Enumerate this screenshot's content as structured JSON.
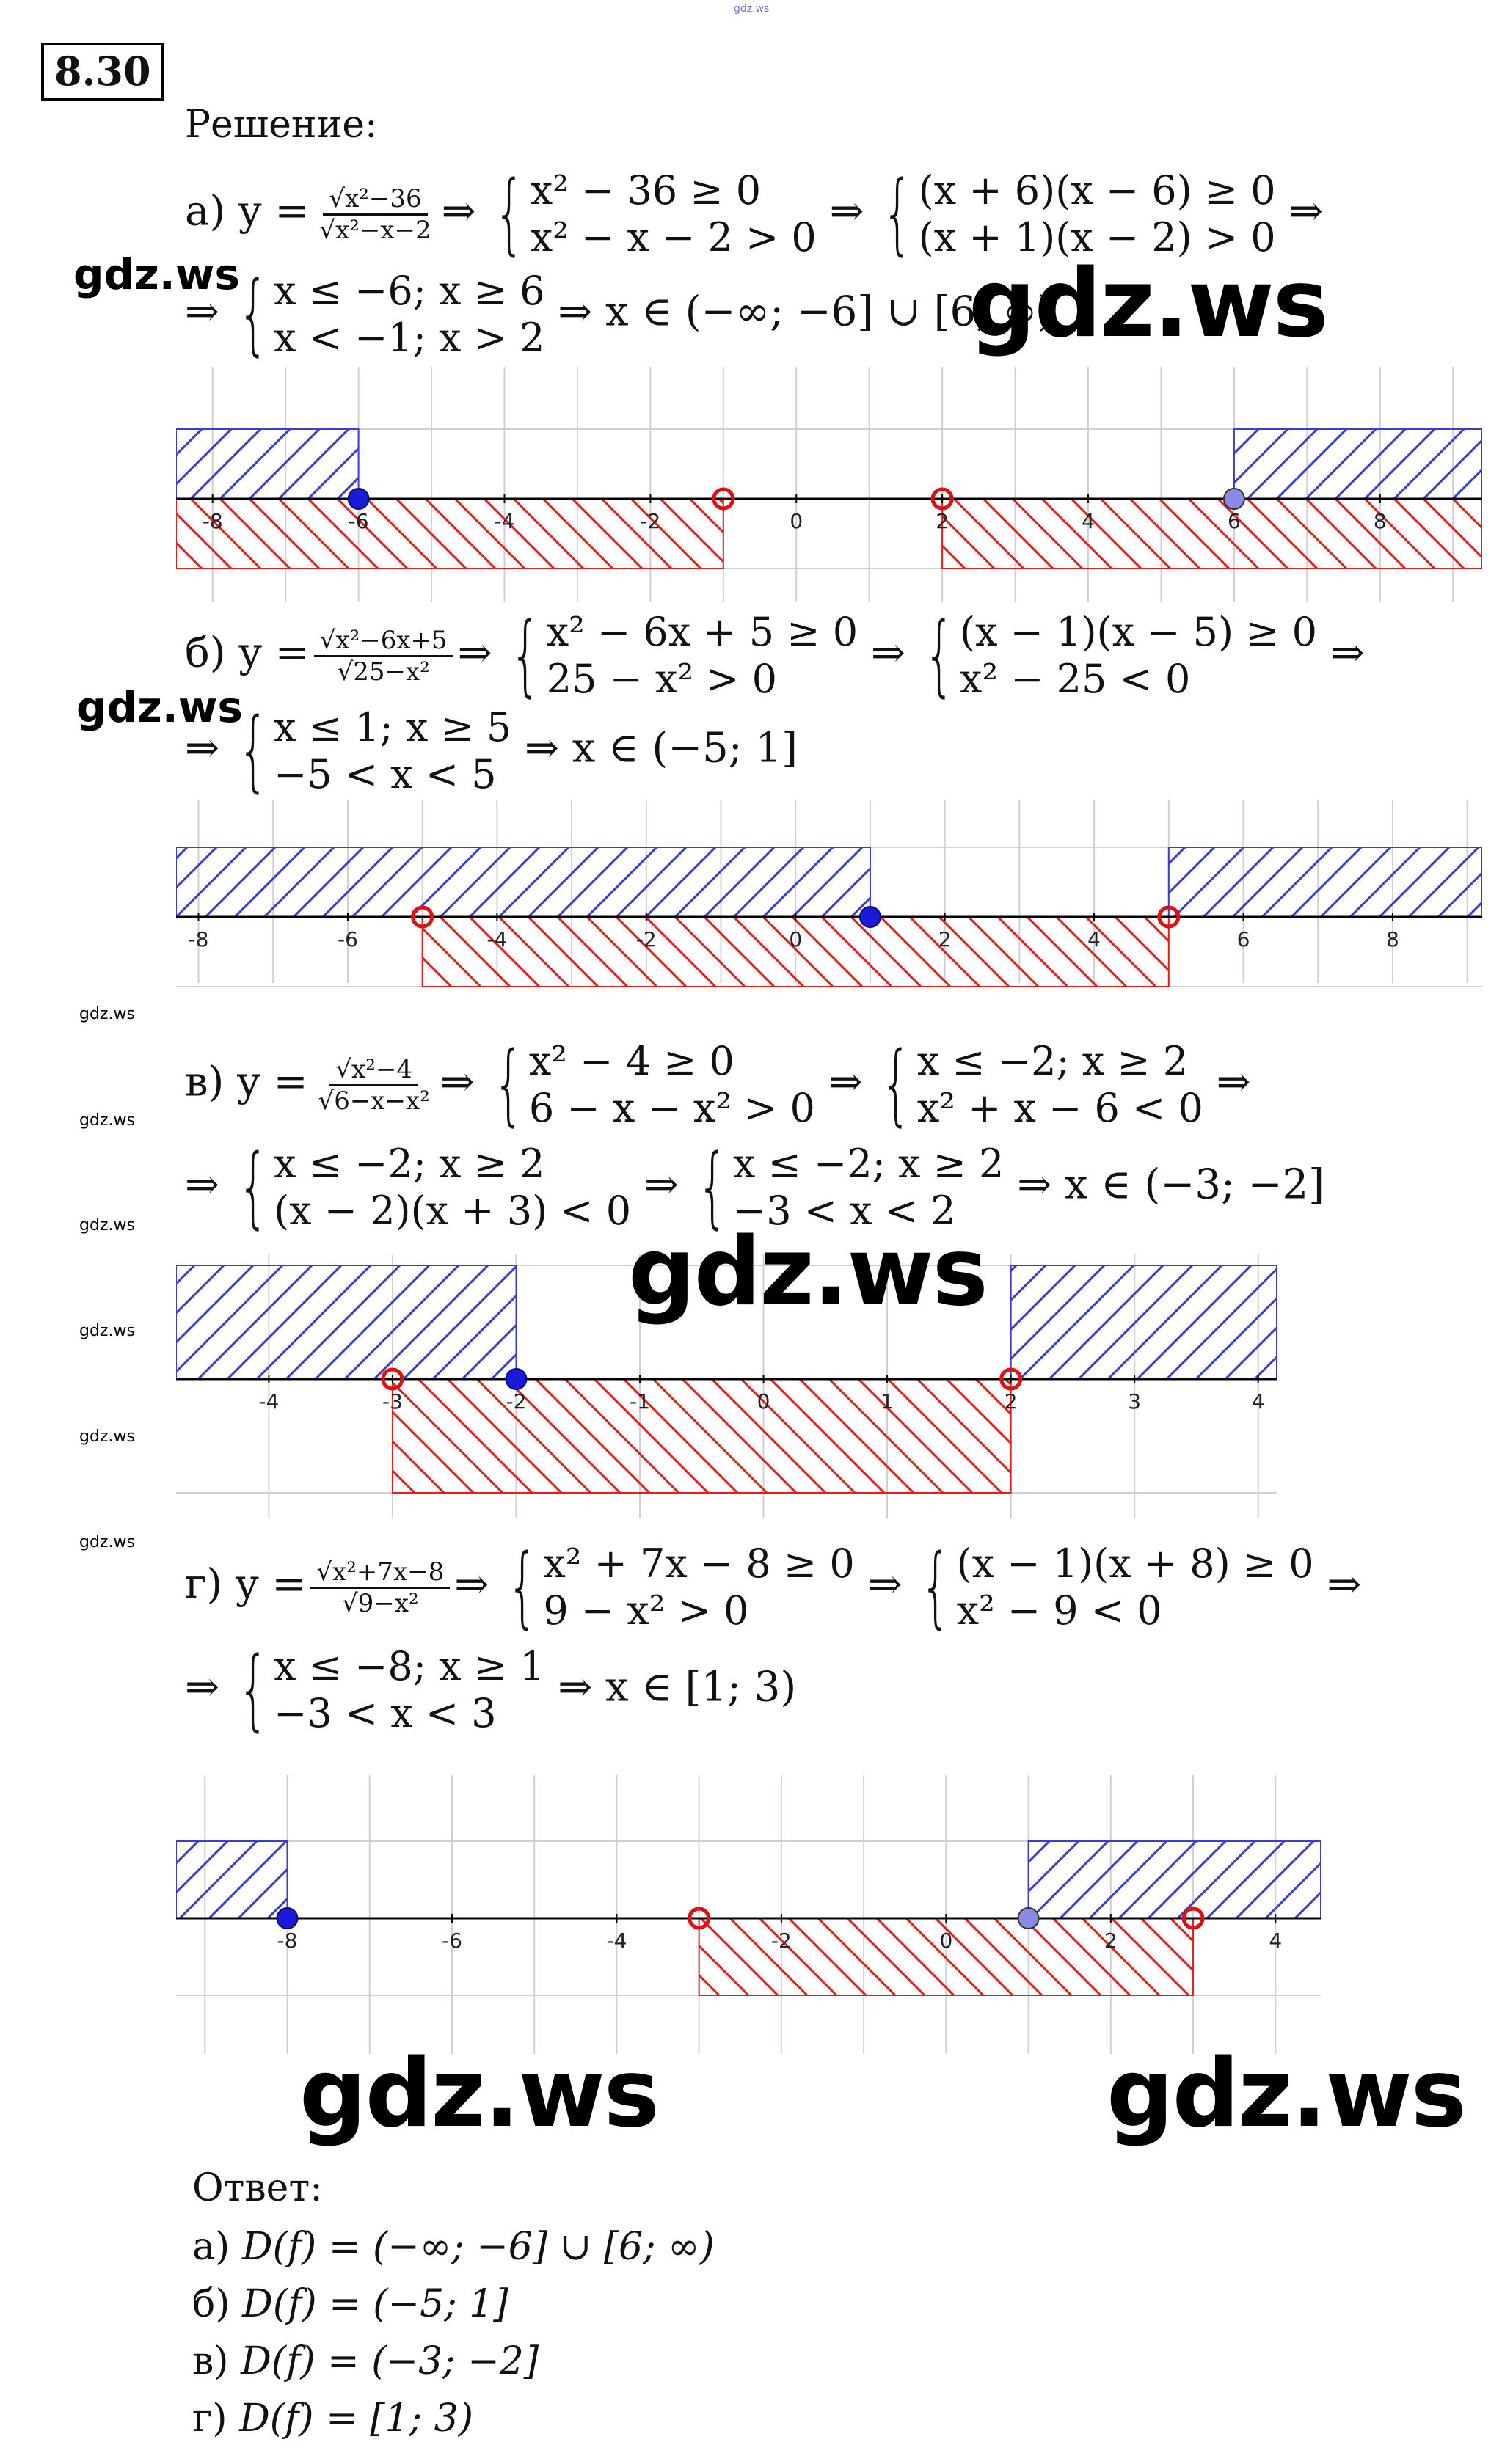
{
  "top_watermark": "gdz.ws",
  "task_number": "8.30",
  "solution_label": "Решение:",
  "watermarks": {
    "big": "gdz.ws",
    "mid": "gdz.ws",
    "small": "gdz.ws"
  },
  "parts": [
    {
      "prefix": "а) y =",
      "frac_num": "√x²−36",
      "frac_den": "√x²−x−2",
      "arrow": "⇒",
      "sys1": [
        "x² − 36 ≥ 0",
        "x² − x − 2 > 0"
      ],
      "sys2": [
        "(x + 6)(x − 6) ≥ 0",
        "(x + 1)(x − 2) > 0"
      ],
      "line2_prefix": "⇒",
      "sys3": [
        "x ≤ −6; x ≥ 6",
        "x < −1; x > 2"
      ],
      "result": "⇒ x ∈ (−∞; −6] ∪ [6; ∞)",
      "axis": {
        "ticks": [
          -8,
          -6,
          -4,
          -2,
          0,
          2,
          4,
          6,
          8
        ],
        "range": [
          -8.5,
          9.4
        ]
      }
    },
    {
      "prefix": "б) y =",
      "frac_num": "√x²−6x+5",
      "frac_den": "√25−x²",
      "arrow": "⇒",
      "sys1": [
        "x² − 6x + 5 ≥ 0",
        "25 − x² > 0"
      ],
      "sys2": [
        "(x − 1)(x − 5) ≥ 0",
        "x² − 25 < 0"
      ],
      "line2_prefix": "⇒",
      "sys3": [
        "x ≤ 1; x ≥ 5",
        "−5 < x < 5"
      ],
      "result": "⇒ x ∈ (−5; 1]",
      "axis": {
        "ticks": [
          -8,
          -6,
          -4,
          -2,
          0,
          2,
          4,
          6,
          8
        ],
        "range": [
          -8.3,
          9.2
        ]
      }
    },
    {
      "prefix": "в) y =",
      "frac_num": "√x²−4",
      "frac_den": "√6−x−x²",
      "arrow": "⇒",
      "sys1": [
        "x² − 4 ≥ 0",
        "6 − x − x² > 0"
      ],
      "sys2": [
        "x ≤ −2; x ≥ 2",
        "x² + x − 6 < 0"
      ],
      "line2_prefix": "⇒",
      "sys3": [
        "x ≤ −2; x ≥ 2",
        "(x − 2)(x + 3) < 0"
      ],
      "sys4": [
        "x ≤ −2; x ≥ 2",
        "−3 < x < 2"
      ],
      "result": "⇒ x ∈ (−3; −2]",
      "axis": {
        "ticks": [
          -4,
          -3,
          -2,
          -1,
          0,
          1,
          2,
          3,
          4
        ],
        "range": [
          -4.75,
          4.15
        ]
      }
    },
    {
      "prefix": "г) y =",
      "frac_num": "√x²+7x−8",
      "frac_den": "√9−x²",
      "arrow": "⇒",
      "sys1": [
        "x² + 7x − 8 ≥ 0",
        "9 − x² > 0"
      ],
      "sys2": [
        "(x − 1)(x + 8) ≥ 0",
        "x² − 9 < 0"
      ],
      "line2_prefix": "⇒",
      "sys3": [
        "x ≤ −8; x ≥ 1",
        "−3 < x < 3"
      ],
      "result": "⇒ x ∈ [1; 3)",
      "axis": {
        "ticks": [
          -8,
          -6,
          -4,
          -2,
          0,
          2,
          4
        ],
        "range": [
          -9.35,
          4.55
        ]
      }
    }
  ],
  "answer": {
    "label": "Ответ:",
    "items": [
      {
        "prefix": "а)",
        "value": "D(f) = (−∞; −6] ∪ [6; ∞)"
      },
      {
        "prefix": "б)",
        "value": "D(f) = (−5; 1]"
      },
      {
        "prefix": "в)",
        "value": "D(f) = (−3; −2]"
      },
      {
        "prefix": "г)",
        "value": "D(f) = [1; 3)"
      }
    ]
  },
  "colors": {
    "blue_hatch": "#3c3cd2",
    "red_hatch": "#e02020",
    "solid_point": "#1a1ad8",
    "light_point": "#8a8ae6",
    "open_point": "#e01010"
  }
}
